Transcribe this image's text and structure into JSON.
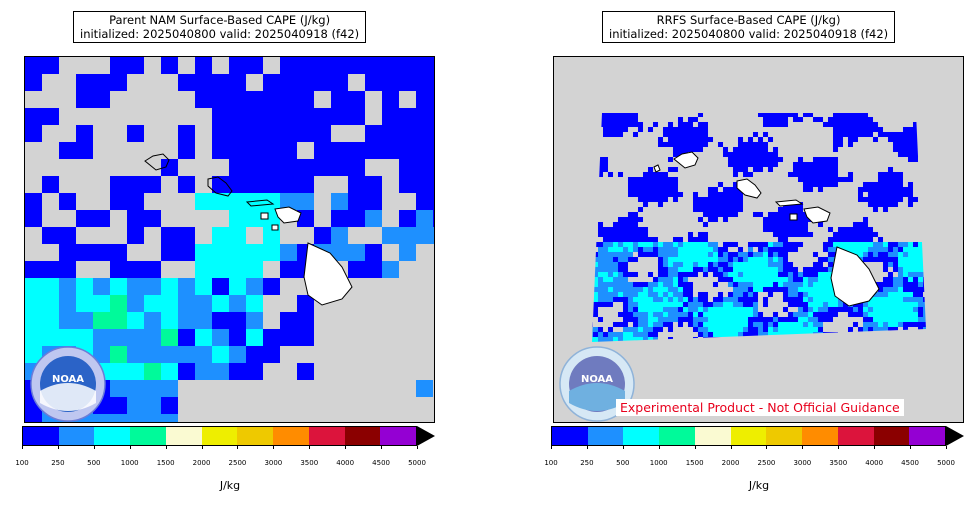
{
  "panels": [
    {
      "title_line1": "Parent NAM Surface-Based CAPE (J/kg)",
      "title_line2": "initialized: 2025040800 valid: 2025040918 (f42)"
    },
    {
      "title_line1": "RRFS Surface-Based CAPE (J/kg)",
      "title_line2": "initialized: 2025040800 valid: 2025040918 (f42)"
    }
  ],
  "colorbar": {
    "ticks": [
      "100",
      "250",
      "500",
      "1000",
      "1500",
      "2000",
      "2500",
      "3000",
      "3500",
      "4000",
      "4500",
      "5000"
    ],
    "colors": [
      "#0000ff",
      "#1e90ff",
      "#00ffff",
      "#00fa9a",
      "#fafad2",
      "#eeee00",
      "#eec900",
      "#ff8c00",
      "#dc143c",
      "#8b0000",
      "#9400d3"
    ],
    "units": "J/kg"
  },
  "logo": {
    "text": "NOAA"
  },
  "disclaimer": "Experimental Product - Not Official Guidance",
  "legend_colors": {
    "background": "#d3d3d3",
    "land": "#ffffff",
    "coast": "#000000"
  }
}
